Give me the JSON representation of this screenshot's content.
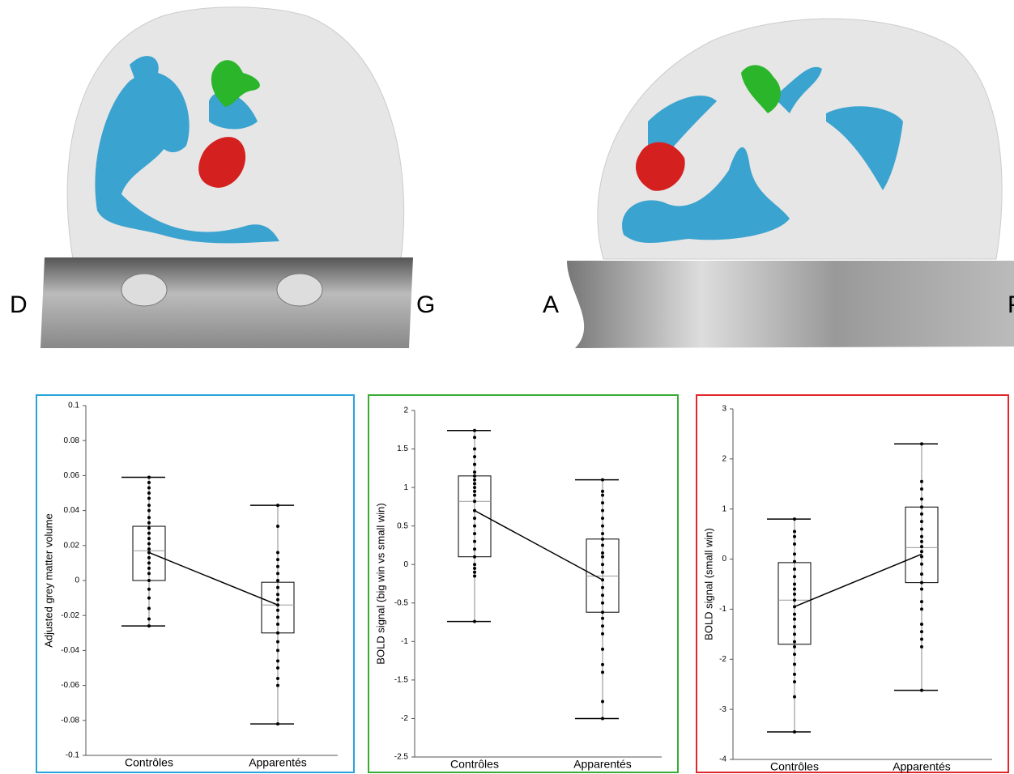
{
  "labels": {
    "left": "D",
    "right": "G",
    "front": "A",
    "back": "P"
  },
  "chart_data": [
    {
      "type": "box",
      "ylabel": "Adjusted grey matter volume",
      "color": "#29a3dc",
      "categories": [
        "Contrôles",
        "Apparentés"
      ],
      "ylim": [
        -0.1,
        0.1
      ],
      "yticks": [
        -0.1,
        -0.08,
        -0.06,
        -0.04,
        -0.02,
        0,
        0.02,
        0.04,
        0.06,
        0.08,
        0.1
      ],
      "min": [
        -0.026,
        -0.082
      ],
      "q1": [
        0,
        -0.03
      ],
      "median": [
        0.017,
        -0.014
      ],
      "q3": [
        0.031,
        -0.001
      ],
      "max": [
        0.059,
        0.043
      ],
      "means": [
        0.016,
        -0.014
      ],
      "points": [
        [
          0.059,
          0.056,
          0.053,
          0.05,
          0.047,
          0.043,
          0.04,
          0.036,
          0.033,
          0.03,
          0.027,
          0.024,
          0.021,
          0.018,
          0.016,
          0.013,
          0.01,
          0.007,
          0.004,
          0,
          -0.005,
          -0.01,
          -0.016,
          -0.022,
          -0.026
        ],
        [
          0.043,
          0.031,
          0.016,
          0.012,
          0.008,
          0.004,
          0,
          -0.004,
          -0.008,
          -0.011,
          -0.014,
          -0.017,
          -0.021,
          -0.025,
          -0.03,
          -0.035,
          -0.04,
          -0.046,
          -0.05,
          -0.056,
          -0.06,
          -0.082
        ]
      ]
    },
    {
      "type": "box",
      "ylabel": "BOLD signal (big win vs small win)",
      "color": "#3aaa35",
      "categories": [
        "Contrôles",
        "Apparentés"
      ],
      "ylim": [
        -2.5,
        2
      ],
      "yticks": [
        -2.5,
        -2,
        -1.5,
        -1,
        -0.5,
        0,
        0.5,
        1,
        1.5,
        2
      ],
      "min": [
        -0.74,
        -2.0
      ],
      "q1": [
        0.1,
        -0.62
      ],
      "median": [
        0.82,
        -0.15
      ],
      "q3": [
        1.15,
        0.33
      ],
      "max": [
        1.74,
        1.1
      ],
      "means": [
        0.7,
        -0.2
      ],
      "points": [
        [
          1.74,
          1.65,
          1.5,
          1.4,
          1.3,
          1.2,
          1.15,
          1.1,
          1.05,
          1.0,
          0.95,
          0.9,
          0.82,
          0.7,
          0.6,
          0.5,
          0.4,
          0.3,
          0.2,
          0.1,
          0.0,
          -0.05,
          -0.1,
          -0.15,
          -0.74
        ],
        [
          1.1,
          0.95,
          0.9,
          0.8,
          0.7,
          0.6,
          0.5,
          0.4,
          0.33,
          0.25,
          0.15,
          0.1,
          0,
          -0.1,
          -0.2,
          -0.3,
          -0.4,
          -0.5,
          -0.62,
          -0.7,
          -0.8,
          -0.9,
          -1.1,
          -1.3,
          -1.4,
          -1.78,
          -2.0
        ]
      ]
    },
    {
      "type": "box",
      "ylabel": "BOLD signal (small win)",
      "color": "#e3262b",
      "categories": [
        "Contrôles",
        "Apparentés"
      ],
      "ylim": [
        -4,
        3
      ],
      "yticks": [
        -4,
        -3,
        -2,
        -1,
        0,
        1,
        2,
        3
      ],
      "min": [
        -3.45,
        -2.62
      ],
      "q1": [
        -1.7,
        -0.47
      ],
      "median": [
        -0.82,
        0.23
      ],
      "q3": [
        -0.07,
        1.04
      ],
      "max": [
        0.8,
        2.3
      ],
      "means": [
        -0.95,
        0.1
      ],
      "points": [
        [
          0.8,
          0.55,
          0.45,
          0.3,
          0.1,
          -0.05,
          -0.2,
          -0.35,
          -0.5,
          -0.6,
          -0.7,
          -0.82,
          -0.95,
          -1.1,
          -1.2,
          -1.35,
          -1.5,
          -1.65,
          -1.75,
          -1.9,
          -2.1,
          -2.3,
          -2.45,
          -2.75,
          -3.45
        ],
        [
          2.3,
          1.55,
          1.4,
          1.2,
          1.04,
          0.9,
          0.75,
          0.6,
          0.45,
          0.35,
          0.25,
          0.15,
          0.05,
          -0.1,
          -0.3,
          -0.47,
          -0.6,
          -0.85,
          -1.0,
          -1.3,
          -1.45,
          -1.6,
          -1.75,
          -2.62
        ]
      ]
    }
  ]
}
